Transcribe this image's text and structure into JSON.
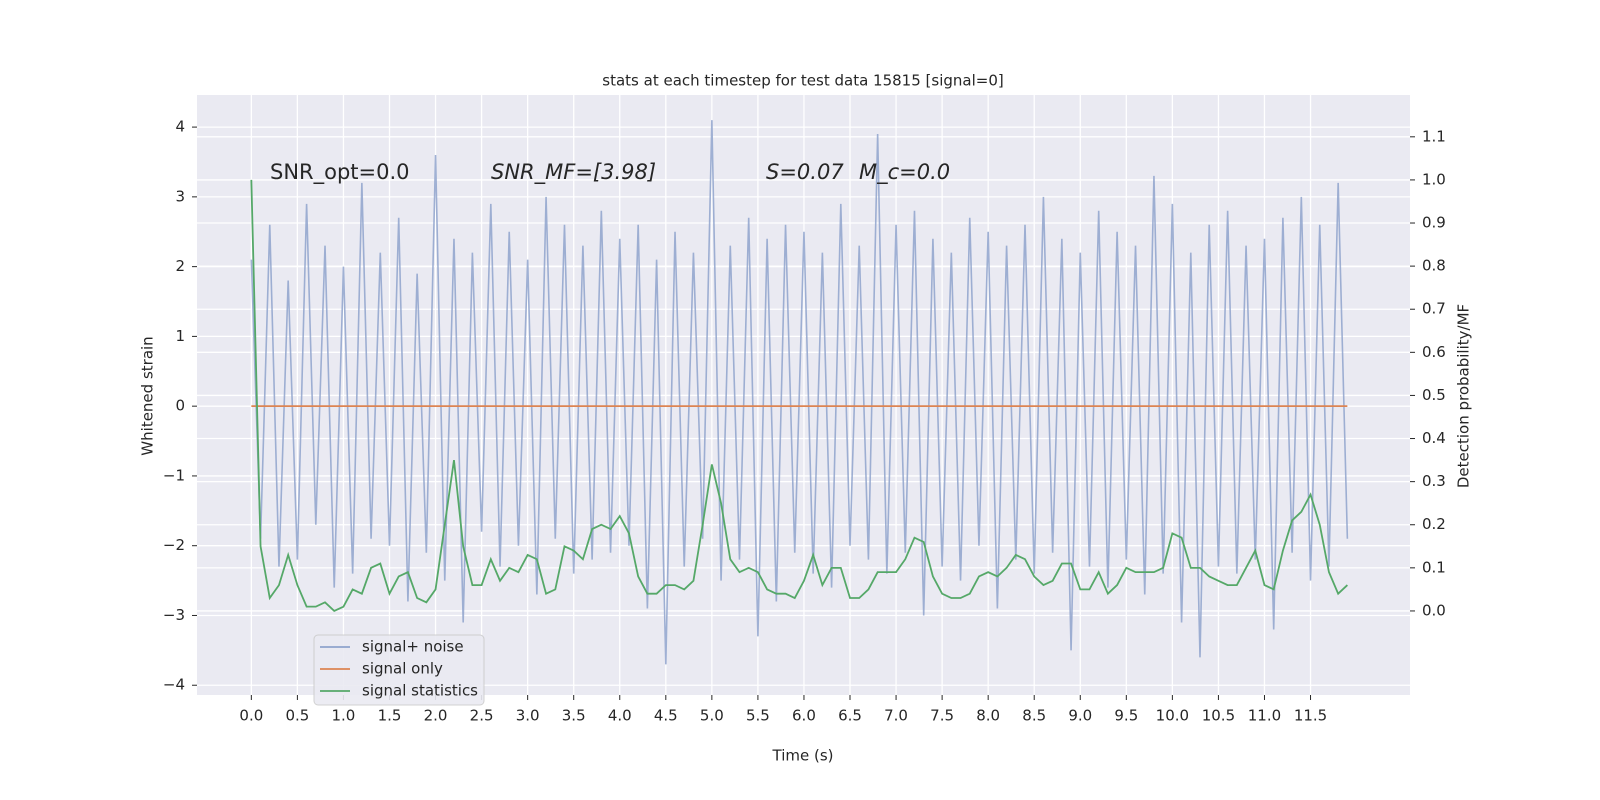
{
  "chart_data": {
    "type": "line",
    "title": "stats at each timestep for test data 15815 [signal=0]",
    "xlabel": "Time (s)",
    "ylabel": "Whitened strain",
    "y2label": "Detection probability/MF",
    "annotations": [
      "SNR_opt=0.0",
      "SNR_MF=[3.98]",
      "S=0.07",
      "M_c=0.0"
    ],
    "xlim": [
      -0.59,
      12.58
    ],
    "ylim": [
      -4.14,
      4.46
    ],
    "y2lim": [
      -0.195,
      1.197
    ],
    "xticks": [
      {
        "value": 0,
        "label": "0.0"
      },
      {
        "value": 0.5,
        "label": "0.5"
      },
      {
        "value": 1,
        "label": "1.0"
      },
      {
        "value": 1.5,
        "label": "1.5"
      },
      {
        "value": 2,
        "label": "2.0"
      },
      {
        "value": 2.5,
        "label": "2.5"
      },
      {
        "value": 3,
        "label": "3.0"
      },
      {
        "value": 3.5,
        "label": "3.5"
      },
      {
        "value": 4,
        "label": "4.0"
      },
      {
        "value": 4.5,
        "label": "4.5"
      },
      {
        "value": 5,
        "label": "5.0"
      },
      {
        "value": 5.5,
        "label": "5.5"
      },
      {
        "value": 6,
        "label": "6.0"
      },
      {
        "value": 6.5,
        "label": "6.5"
      },
      {
        "value": 7,
        "label": "7.0"
      },
      {
        "value": 7.5,
        "label": "7.5"
      },
      {
        "value": 8,
        "label": "8.0"
      },
      {
        "value": 8.5,
        "label": "8.5"
      },
      {
        "value": 9,
        "label": "9.0"
      },
      {
        "value": 9.5,
        "label": "9.5"
      },
      {
        "value": 10,
        "label": "10.0"
      },
      {
        "value": 10.5,
        "label": "10.5"
      },
      {
        "value": 11,
        "label": "11.0"
      },
      {
        "value": 11.5,
        "label": "11.5"
      }
    ],
    "yticks": [
      {
        "value": -4,
        "label": "−4"
      },
      {
        "value": -3,
        "label": "−3"
      },
      {
        "value": -2,
        "label": "−2"
      },
      {
        "value": -1,
        "label": "−1"
      },
      0,
      1,
      2,
      3,
      4
    ],
    "y2ticks": [
      {
        "value": 0,
        "label": "0.0"
      },
      {
        "value": 0.1,
        "label": "0.1"
      },
      {
        "value": 0.2,
        "label": "0.2"
      },
      {
        "value": 0.3,
        "label": "0.3"
      },
      {
        "value": 0.4,
        "label": "0.4"
      },
      {
        "value": 0.5,
        "label": "0.5"
      },
      {
        "value": 0.6,
        "label": "0.6"
      },
      {
        "value": 0.7,
        "label": "0.7"
      },
      {
        "value": 0.8,
        "label": "0.8"
      },
      {
        "value": 0.9,
        "label": "0.9"
      },
      {
        "value": 1,
        "label": "1.0"
      },
      {
        "value": 1.1,
        "label": "1.1"
      }
    ],
    "grid": true,
    "legend": "lower left",
    "x": [
      0,
      0.1,
      0.2,
      0.3,
      0.4,
      0.5,
      0.6,
      0.7,
      0.8,
      0.9,
      1,
      1.1,
      1.2,
      1.3,
      1.4,
      1.5,
      1.6,
      1.7,
      1.8,
      1.9,
      2,
      2.1,
      2.2,
      2.3,
      2.4,
      2.5,
      2.6,
      2.7,
      2.8,
      2.9,
      3,
      3.1,
      3.2,
      3.3,
      3.4,
      3.5,
      3.6,
      3.7,
      3.8,
      3.9,
      4,
      4.1,
      4.2,
      4.3,
      4.4,
      4.5,
      4.6,
      4.7,
      4.8,
      4.9,
      5,
      5.1,
      5.2,
      5.3,
      5.4,
      5.5,
      5.6,
      5.7,
      5.8,
      5.9,
      6,
      6.1,
      6.2,
      6.3,
      6.4,
      6.5,
      6.6,
      6.7,
      6.8,
      6.9,
      7,
      7.1,
      7.2,
      7.3,
      7.4,
      7.5,
      7.6,
      7.7,
      7.8,
      7.9,
      8,
      8.1,
      8.2,
      8.3,
      8.4,
      8.5,
      8.6,
      8.7,
      8.8,
      8.9,
      9,
      9.1,
      9.2,
      9.3,
      9.4,
      9.5,
      9.6,
      9.7,
      9.8,
      9.9,
      10,
      10.1,
      10.2,
      10.3,
      10.4,
      10.5,
      10.6,
      10.7,
      10.8,
      10.9,
      11,
      11.1,
      11.2,
      11.3,
      11.4,
      11.5,
      11.6,
      11.7,
      11.8,
      11.9
    ],
    "series": [
      {
        "name": "signal+ noise",
        "color": "#8fa3cc",
        "values": [
          2.1,
          -1.9,
          2.6,
          -2.3,
          1.8,
          -2.2,
          2.9,
          -1.7,
          2.3,
          -2.6,
          2.0,
          -2.4,
          3.2,
          -1.9,
          2.2,
          -2.0,
          2.7,
          -2.8,
          1.9,
          -2.1,
          3.6,
          -2.5,
          2.4,
          -3.1,
          2.2,
          -1.8,
          2.9,
          -2.3,
          2.5,
          -2.0,
          2.1,
          -2.7,
          3.0,
          -1.9,
          2.6,
          -2.4,
          2.3,
          -2.2,
          2.8,
          -2.1,
          2.4,
          -2.0,
          2.6,
          -2.9,
          2.1,
          -3.7,
          2.5,
          -2.3,
          2.2,
          -1.9,
          4.1,
          -2.5,
          2.3,
          -2.2,
          2.7,
          -3.3,
          2.4,
          -2.8,
          2.6,
          -2.1,
          2.5,
          -2.4,
          2.2,
          -2.6,
          2.9,
          -2.0,
          2.3,
          -2.2,
          3.9,
          -2.4,
          2.6,
          -2.1,
          2.8,
          -3.0,
          2.4,
          -2.3,
          2.2,
          -2.5,
          2.7,
          -2.0,
          2.5,
          -2.9,
          2.3,
          -2.2,
          2.6,
          -2.4,
          3.0,
          -2.1,
          2.4,
          -3.5,
          2.2,
          -2.3,
          2.8,
          -2.6,
          2.5,
          -2.2,
          2.3,
          -2.7,
          3.3,
          -2.4,
          2.9,
          -3.1,
          2.2,
          -3.6,
          2.6,
          -2.3,
          2.8,
          -2.4,
          2.3,
          -2.2,
          2.4,
          -3.2,
          2.7,
          -2.1,
          3.0,
          -2.5,
          2.6,
          -2.3,
          3.2,
          -1.9
        ]
      },
      {
        "name": "signal only",
        "color": "#dd8452",
        "x": [
          0,
          11.9
        ],
        "values": [
          0,
          0
        ]
      },
      {
        "name": "signal statistics",
        "color": "#55a868",
        "axis": "y2",
        "values": [
          1.0,
          0.15,
          0.03,
          0.06,
          0.13,
          0.06,
          0.01,
          0.01,
          0.02,
          0.0,
          0.01,
          0.05,
          0.04,
          0.1,
          0.11,
          0.04,
          0.08,
          0.09,
          0.03,
          0.02,
          0.05,
          0.2,
          0.35,
          0.15,
          0.06,
          0.06,
          0.12,
          0.07,
          0.1,
          0.09,
          0.13,
          0.12,
          0.04,
          0.05,
          0.15,
          0.14,
          0.12,
          0.19,
          0.2,
          0.19,
          0.22,
          0.18,
          0.08,
          0.04,
          0.04,
          0.06,
          0.06,
          0.05,
          0.07,
          0.2,
          0.34,
          0.25,
          0.12,
          0.09,
          0.1,
          0.09,
          0.05,
          0.04,
          0.04,
          0.03,
          0.07,
          0.13,
          0.06,
          0.1,
          0.1,
          0.03,
          0.03,
          0.05,
          0.09,
          0.09,
          0.09,
          0.12,
          0.17,
          0.16,
          0.08,
          0.04,
          0.03,
          0.03,
          0.04,
          0.08,
          0.09,
          0.08,
          0.1,
          0.13,
          0.12,
          0.08,
          0.06,
          0.07,
          0.11,
          0.11,
          0.05,
          0.05,
          0.09,
          0.04,
          0.06,
          0.1,
          0.09,
          0.09,
          0.09,
          0.1,
          0.18,
          0.17,
          0.1,
          0.1,
          0.08,
          0.07,
          0.06,
          0.06,
          0.1,
          0.14,
          0.06,
          0.05,
          0.14,
          0.21,
          0.23,
          0.27,
          0.2,
          0.09,
          0.04,
          0.06
        ]
      }
    ]
  }
}
